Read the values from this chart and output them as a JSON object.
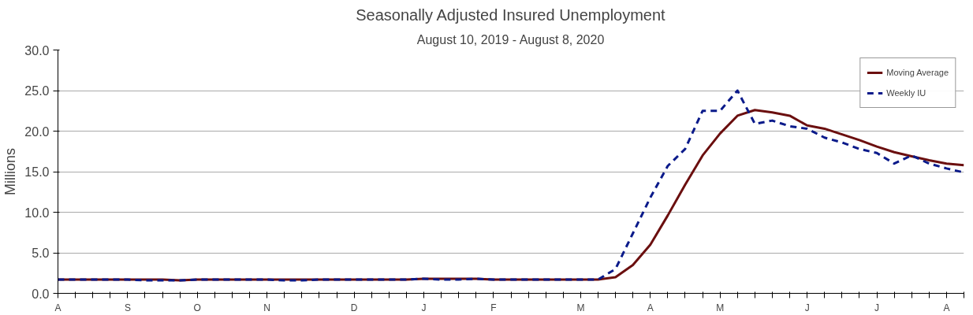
{
  "chart_data": {
    "type": "line",
    "title": "Seasonally Adjusted Insured Unemployment",
    "subtitle": "August 10, 2019 - August 8, 2020",
    "ylabel": "Millions",
    "categories": [
      "A",
      null,
      null,
      null,
      "S",
      null,
      null,
      null,
      "O",
      null,
      null,
      null,
      "N",
      null,
      null,
      null,
      null,
      "D",
      null,
      null,
      null,
      "J",
      null,
      null,
      null,
      "F",
      null,
      null,
      null,
      null,
      "M",
      null,
      null,
      null,
      "A",
      null,
      null,
      null,
      "M",
      null,
      null,
      null,
      null,
      "J",
      null,
      null,
      null,
      "J",
      null,
      null,
      null,
      "A",
      null
    ],
    "series": [
      {
        "name": "Moving Average",
        "color": "#6b0f0f",
        "line_style": "solid",
        "values": [
          1.7,
          1.7,
          1.7,
          1.7,
          1.7,
          1.7,
          1.7,
          1.6,
          1.7,
          1.7,
          1.7,
          1.7,
          1.7,
          1.7,
          1.7,
          1.7,
          1.7,
          1.7,
          1.7,
          1.7,
          1.7,
          1.8,
          1.8,
          1.8,
          1.8,
          1.7,
          1.7,
          1.7,
          1.7,
          1.7,
          1.7,
          1.7,
          2.0,
          3.5,
          6.0,
          9.6,
          13.4,
          17.0,
          19.7,
          21.9,
          22.6,
          22.3,
          21.9,
          20.7,
          20.3,
          19.6,
          18.9,
          18.1,
          17.4,
          16.9,
          16.4,
          16.0,
          15.8
        ]
      },
      {
        "name": "Weekly IU",
        "color": "#0a1a8a",
        "line_style": "dashed",
        "values": [
          1.7,
          1.7,
          1.7,
          1.7,
          1.7,
          1.6,
          1.6,
          1.6,
          1.7,
          1.7,
          1.7,
          1.7,
          1.7,
          1.6,
          1.6,
          1.7,
          1.7,
          1.7,
          1.7,
          1.7,
          1.7,
          1.8,
          1.7,
          1.7,
          1.8,
          1.7,
          1.7,
          1.7,
          1.7,
          1.7,
          1.7,
          1.7,
          3.0,
          7.4,
          11.8,
          15.7,
          17.8,
          22.5,
          22.5,
          25.0,
          20.9,
          21.3,
          20.6,
          20.3,
          19.2,
          18.6,
          17.8,
          17.3,
          16.0,
          17.0,
          16.0,
          15.4,
          14.9
        ]
      }
    ],
    "ylim": [
      0,
      30
    ],
    "yticks": [
      {
        "value": 0,
        "label": "0.0"
      },
      {
        "value": 5,
        "label": "5.0"
      },
      {
        "value": 10,
        "label": "10.0"
      },
      {
        "value": 15,
        "label": "15.0"
      },
      {
        "value": 20,
        "label": "20.0"
      },
      {
        "value": 25,
        "label": "25.0"
      },
      {
        "value": 30,
        "label": "30.0"
      }
    ],
    "grid": "y",
    "legend": "top right"
  }
}
